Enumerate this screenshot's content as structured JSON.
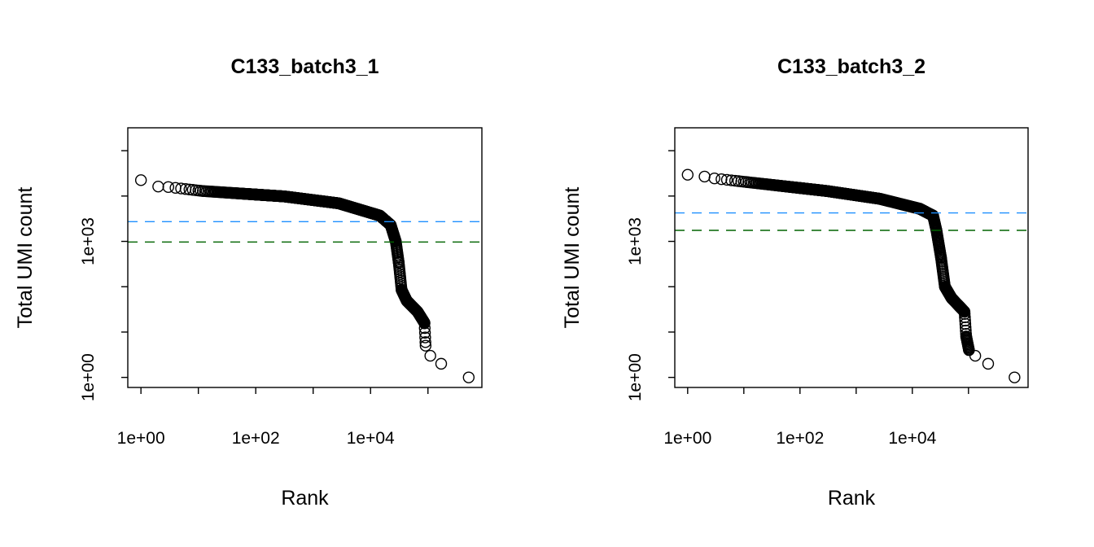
{
  "chart_data": [
    {
      "type": "scatter",
      "title": "C133_batch3_1",
      "xlabel": "Rank",
      "ylabel": "Total UMI count",
      "xscale": "log",
      "yscale": "log",
      "xlim": [
        0.59,
        870000
      ],
      "ylim": [
        0.6,
        320000
      ],
      "x_ticks": [
        1,
        10,
        100,
        1000,
        10000,
        100000
      ],
      "x_tick_labels": [
        "1e+00",
        "",
        "1e+02",
        "",
        "1e+04",
        ""
      ],
      "y_ticks": [
        1,
        10,
        100,
        1000,
        10000,
        100000
      ],
      "y_tick_labels": [
        "1e+00",
        "",
        "",
        "1e+03",
        "",
        ""
      ],
      "grid": false,
      "marker": "open-circle",
      "points": [
        [
          1,
          22400
        ],
        [
          2,
          16200
        ],
        [
          3,
          15800
        ],
        [
          12,
          12900
        ],
        [
          316,
          9800
        ],
        [
          2800,
          6900
        ],
        [
          14500,
          3700
        ],
        [
          22400,
          2300
        ],
        [
          27500,
          1000
        ],
        [
          31000,
          340
        ],
        [
          34700,
          85
        ],
        [
          42700,
          49
        ],
        [
          66000,
          28
        ],
        [
          87000,
          16
        ],
        [
          91000,
          5
        ],
        [
          110000,
          3
        ],
        [
          170000,
          2
        ],
        [
          513000,
          1
        ]
      ],
      "hlines": [
        {
          "value": 2720,
          "color": "#1E90FF",
          "style": "dashed"
        },
        {
          "value": 970,
          "color": "#006400",
          "style": "dashed"
        }
      ]
    },
    {
      "type": "scatter",
      "title": "C133_batch3_2",
      "xlabel": "Rank",
      "ylabel": "Total UMI count",
      "xscale": "log",
      "yscale": "log",
      "xlim": [
        0.59,
        1150000
      ],
      "ylim": [
        0.6,
        320000
      ],
      "x_ticks": [
        1,
        10,
        100,
        1000,
        10000,
        100000
      ],
      "x_tick_labels": [
        "1e+00",
        "",
        "1e+02",
        "",
        "1e+04",
        ""
      ],
      "y_ticks": [
        1,
        10,
        100,
        1000,
        10000,
        100000
      ],
      "y_tick_labels": [
        "1e+00",
        "",
        "",
        "1e+03",
        "",
        ""
      ],
      "grid": false,
      "marker": "open-circle",
      "points": [
        [
          1,
          29500
        ],
        [
          2,
          26900
        ],
        [
          3,
          24500
        ],
        [
          11,
          20400
        ],
        [
          302,
          12900
        ],
        [
          2630,
          8700
        ],
        [
          13500,
          5250
        ],
        [
          23400,
          3700
        ],
        [
          26900,
          1740
        ],
        [
          32400,
          440
        ],
        [
          38000,
          100
        ],
        [
          50000,
          56
        ],
        [
          85000,
          28
        ],
        [
          91000,
          8
        ],
        [
          102000,
          4
        ],
        [
          132000,
          3
        ],
        [
          224000,
          2
        ],
        [
          660000,
          1
        ]
      ],
      "hlines": [
        {
          "value": 4240,
          "color": "#1E90FF",
          "style": "dashed"
        },
        {
          "value": 1750,
          "color": "#006400",
          "style": "dashed"
        }
      ]
    }
  ]
}
